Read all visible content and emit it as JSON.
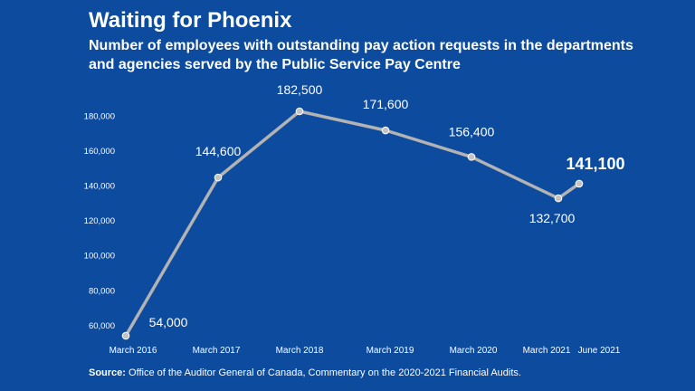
{
  "title": "Waiting for Phoenix",
  "subtitle": "Number of employees with outstanding pay action requests in the departments and agencies served by the Public Service Pay Centre",
  "source": {
    "label": "Source:",
    "text": " Office of the Auditor General of Canada, Commentary on the 2020-2021 Financial Audits."
  },
  "colors": {
    "background": "#0d4b9e",
    "line": "#b3b3b3",
    "marker_fill": "#c4c4c4",
    "text": "#ffffff"
  },
  "chart_data": {
    "type": "line",
    "categories": [
      "March 2016",
      "March 2017",
      "March 2018",
      "March 2019",
      "March 2020",
      "March 2021",
      "June 2021"
    ],
    "values": [
      54000,
      144600,
      182500,
      171600,
      156400,
      132700,
      141100
    ],
    "data_labels": [
      "54,000",
      "144,600",
      "182,500",
      "171,600",
      "156,400",
      "132,700",
      "141,100"
    ],
    "emphasized_label_index": 6,
    "y_ticks": [
      60000,
      80000,
      100000,
      120000,
      140000,
      160000,
      180000
    ],
    "y_tick_labels": [
      "60,000",
      "80,000",
      "100,000",
      "120,000",
      "140,000",
      "160,000",
      "180,000"
    ],
    "ylim": [
      55000,
      180000
    ],
    "grid": false,
    "legend": "none"
  }
}
